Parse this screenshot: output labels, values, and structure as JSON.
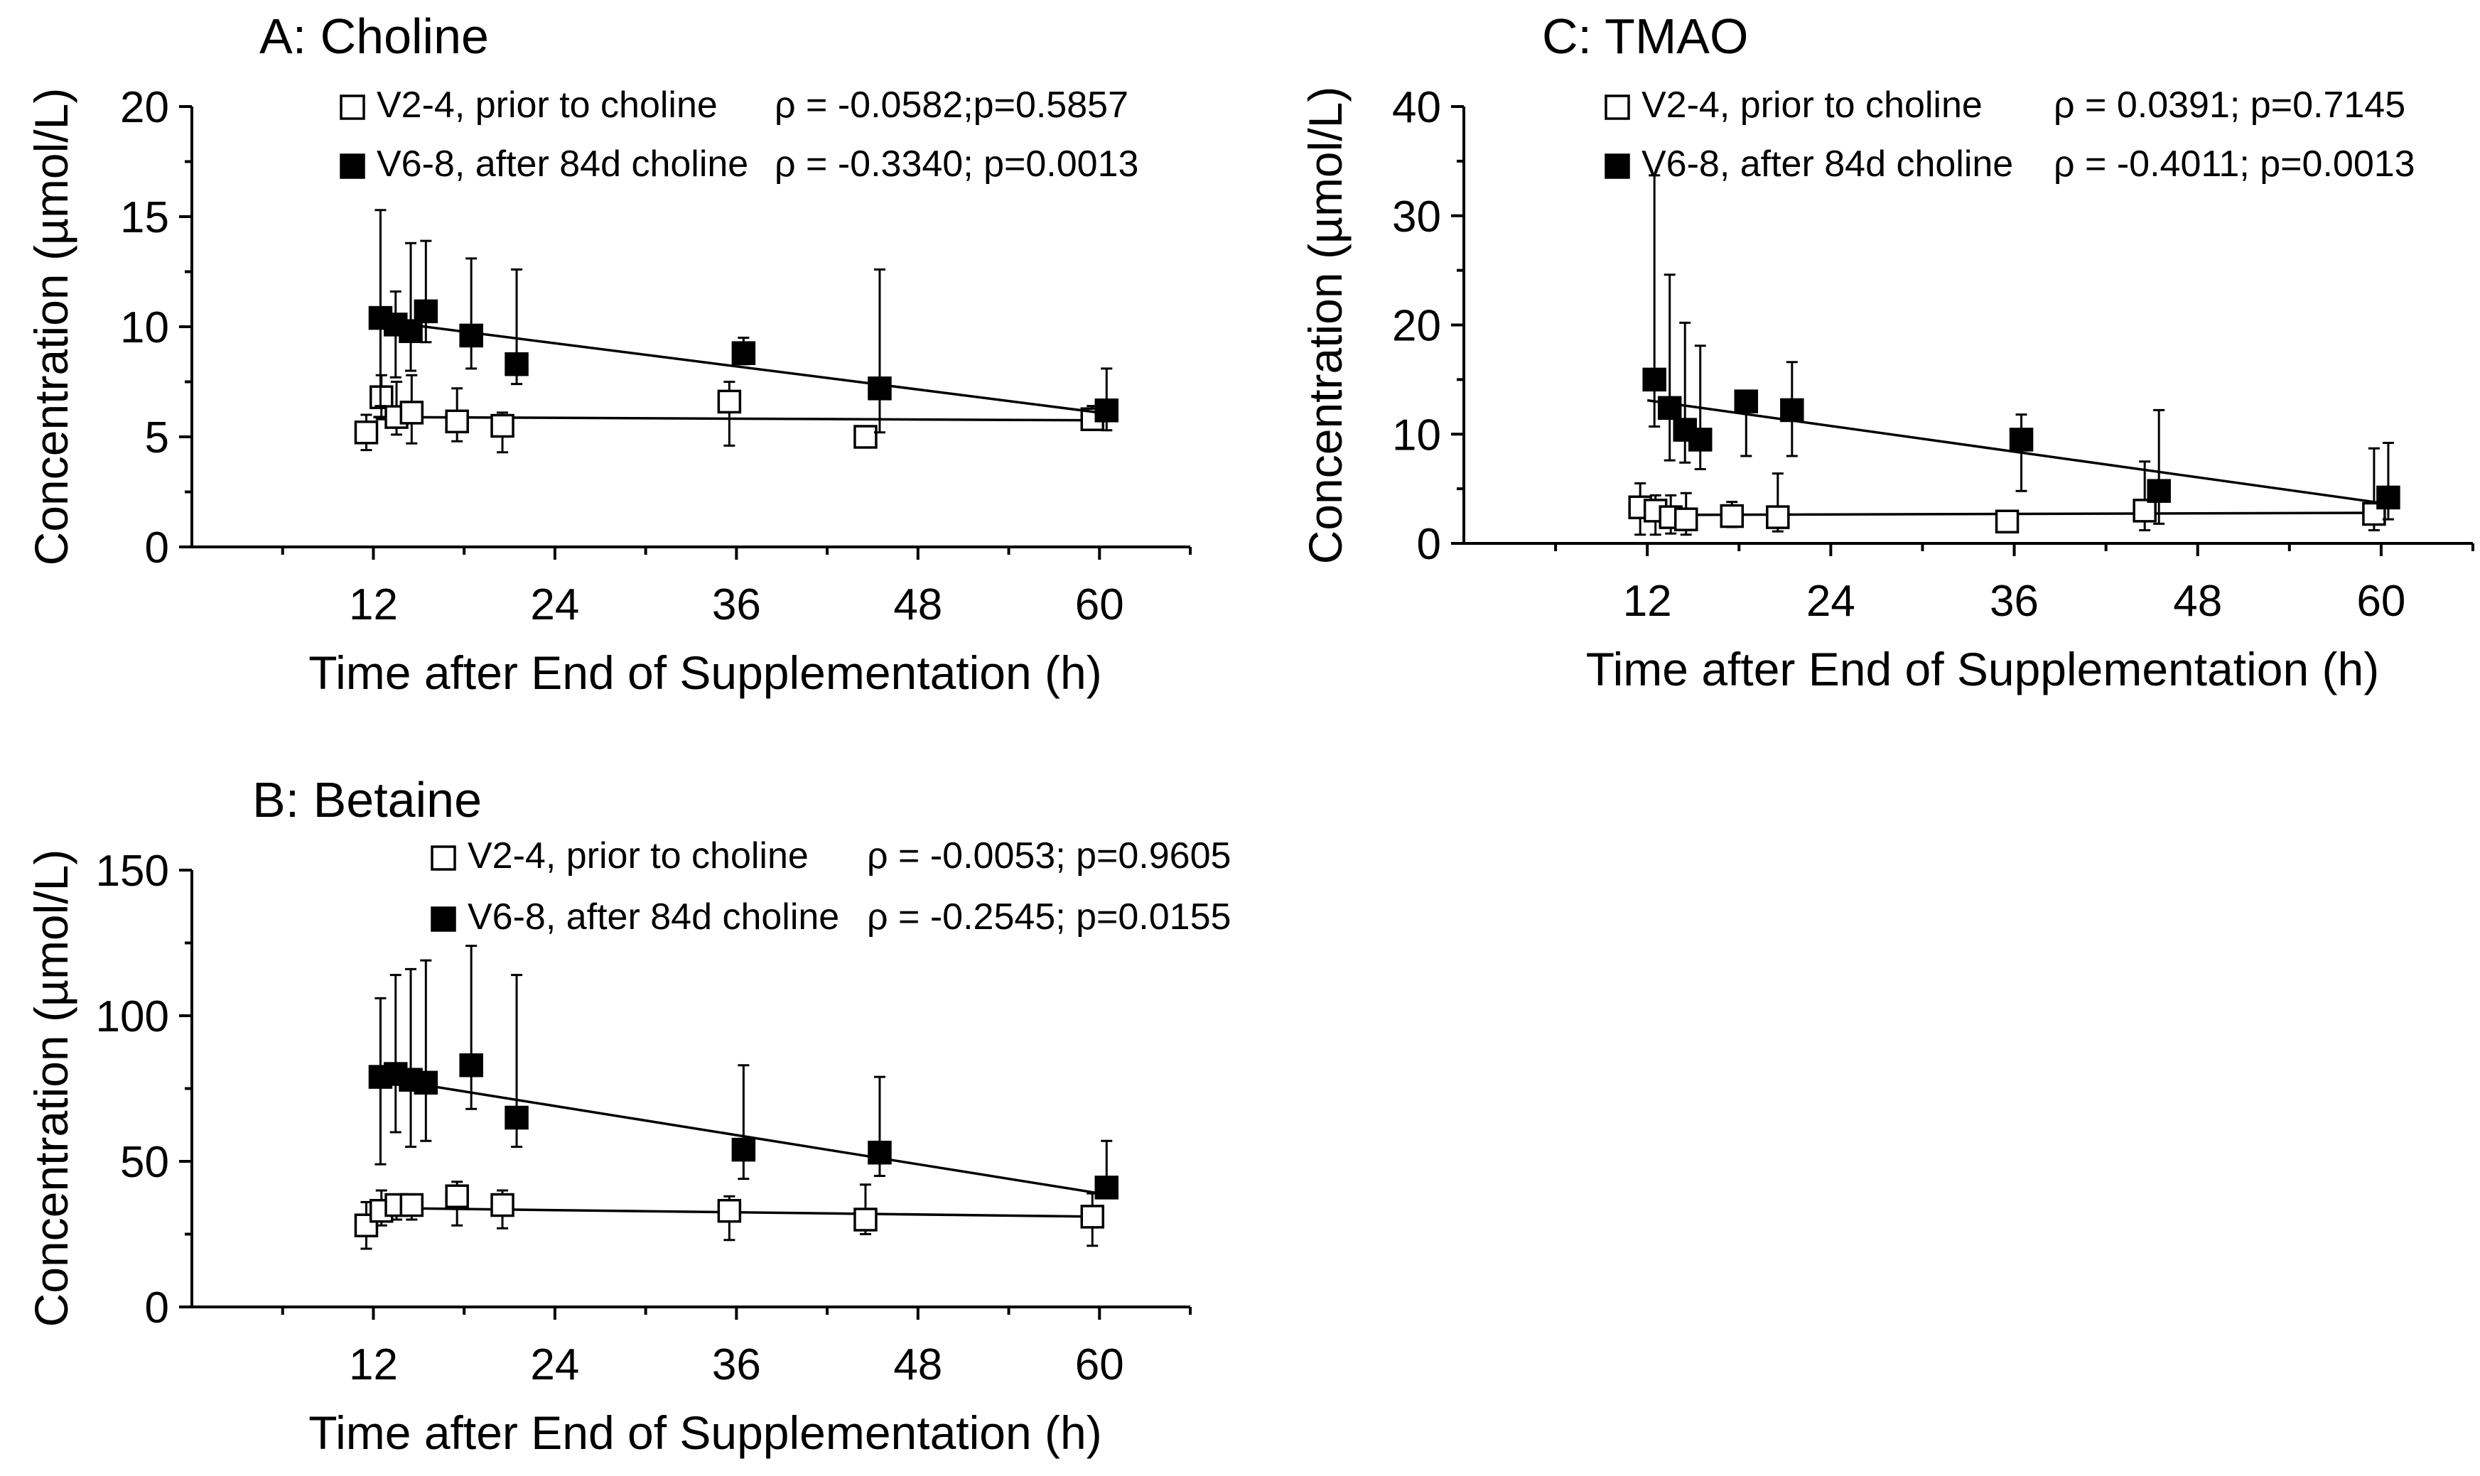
{
  "chart_data": [
    {
      "id": "A",
      "type": "scatter",
      "title": "A: Choline",
      "xlabel": "Time after End of Supplementation (h)",
      "ylabel": "Concentration (µmol/L)",
      "xlim": [
        0,
        66
      ],
      "xticks": [
        12,
        24,
        36,
        48,
        60
      ],
      "ylim": [
        0,
        20
      ],
      "yticks": [
        0,
        5,
        10,
        15,
        20
      ],
      "legend": "top-right",
      "series": [
        {
          "name": "V2-4, prior to choline",
          "marker": "open-square",
          "stat": "ρ  = -0.0582;p=0.5857",
          "x": [
            12,
            13,
            14,
            15,
            18,
            21,
            36,
            45,
            60
          ],
          "y": [
            5.2,
            6.8,
            5.9,
            6.1,
            5.7,
            5.5,
            6.6,
            5.0,
            5.8
          ],
          "err_low": [
            0.8,
            1.0,
            0.8,
            1.4,
            0.9,
            1.2,
            2.0,
            0.2,
            0.4
          ],
          "err_high": [
            0.8,
            1.0,
            1.6,
            1.7,
            1.5,
            0.6,
            0.9,
            0.2,
            0.6
          ],
          "trend": [
            5.9,
            5.75
          ]
        },
        {
          "name": "V6-8, after 84d choline",
          "marker": "filled-square",
          "stat": "ρ  = -0.3340; p=0.0013",
          "x": [
            12,
            13,
            14,
            15,
            18,
            21,
            36,
            45,
            60
          ],
          "y": [
            10.4,
            10.1,
            9.8,
            10.7,
            9.6,
            8.3,
            8.8,
            7.2,
            6.2
          ],
          "err_low": [
            4.0,
            2.4,
            1.8,
            1.4,
            1.5,
            0.9,
            0.5,
            2.0,
            0.9
          ],
          "err_high": [
            4.9,
            1.5,
            4.0,
            3.2,
            3.5,
            4.3,
            0.7,
            5.4,
            1.9
          ],
          "trend": [
            10.3,
            6.1
          ]
        }
      ]
    },
    {
      "id": "B",
      "type": "scatter",
      "title": "B: Betaine",
      "xlabel": "Time after End of Supplementation (h)",
      "ylabel": "Concentration (µmol/L)",
      "xlim": [
        0,
        66
      ],
      "xticks": [
        12,
        24,
        36,
        48,
        60
      ],
      "ylim": [
        0,
        150
      ],
      "yticks": [
        0,
        50,
        100,
        150
      ],
      "legend": "top-right",
      "series": [
        {
          "name": "V2-4, prior to choline",
          "marker": "open-square",
          "stat": "ρ  = -0.0053; p=0.9605",
          "x": [
            12,
            13,
            14,
            15,
            18,
            21,
            36,
            45,
            60
          ],
          "y": [
            28,
            33,
            35,
            35,
            38,
            35,
            33,
            30,
            31
          ],
          "err_low": [
            8,
            5,
            5,
            5,
            10,
            8,
            10,
            5,
            10
          ],
          "err_high": [
            8,
            7,
            3,
            3,
            5,
            5,
            5,
            12,
            8
          ],
          "trend": [
            34,
            31
          ]
        },
        {
          "name": "V6-8, after 84d choline",
          "marker": "filled-square",
          "stat": "ρ  = -0.2545; p=0.0155",
          "x": [
            12,
            13,
            14,
            15,
            18,
            21,
            36,
            45,
            60
          ],
          "y": [
            79,
            80,
            78,
            77,
            83,
            65,
            54,
            53,
            41
          ],
          "err_low": [
            30,
            20,
            23,
            20,
            15,
            10,
            10,
            8,
            3
          ],
          "err_high": [
            27,
            34,
            38,
            42,
            41,
            49,
            29,
            26,
            16
          ],
          "trend": [
            79,
            39
          ]
        }
      ]
    },
    {
      "id": "C",
      "type": "scatter",
      "title": "C: TMAO",
      "xlabel": "Time after End of Supplementation (h)",
      "ylabel": "Concentration (µmol/L)",
      "xlim": [
        0,
        66
      ],
      "xticks": [
        12,
        24,
        36,
        48,
        60
      ],
      "ylim": [
        0,
        40
      ],
      "yticks": [
        0,
        10,
        20,
        30,
        40
      ],
      "legend": "top-right",
      "series": [
        {
          "name": "V2-4, prior to choline",
          "marker": "open-square",
          "stat": "ρ  = 0.0391; p=0.7145",
          "x": [
            12,
            13,
            14,
            15,
            18,
            21,
            36,
            45,
            60
          ],
          "y": [
            3.3,
            3.0,
            2.4,
            2.2,
            2.5,
            2.4,
            2.0,
            3.0,
            2.7
          ],
          "err_low": [
            2.5,
            2.2,
            1.5,
            1.4,
            1.0,
            1.3,
            0.5,
            1.8,
            1.5
          ],
          "err_high": [
            2.2,
            1.4,
            2.0,
            2.4,
            1.3,
            4.0,
            0.5,
            4.5,
            6.0
          ],
          "trend": [
            2.6,
            2.8
          ]
        },
        {
          "name": "V6-8, after 84d choline",
          "marker": "filled-square",
          "stat": "ρ  = -0.4011; p=0.0013",
          "x": [
            12,
            13,
            14,
            15,
            18,
            21,
            36,
            45,
            60
          ],
          "y": [
            15.0,
            12.4,
            10.4,
            9.5,
            13.0,
            12.2,
            9.5,
            4.8,
            4.2
          ],
          "err_low": [
            4.3,
            4.8,
            3.0,
            2.7,
            5.0,
            4.2,
            4.7,
            3.0,
            2.0
          ],
          "err_high": [
            18.7,
            12.2,
            9.8,
            8.6,
            0.5,
            4.4,
            2.3,
            7.4,
            5.0
          ],
          "trend": [
            13.1,
            3.7
          ]
        }
      ]
    }
  ]
}
